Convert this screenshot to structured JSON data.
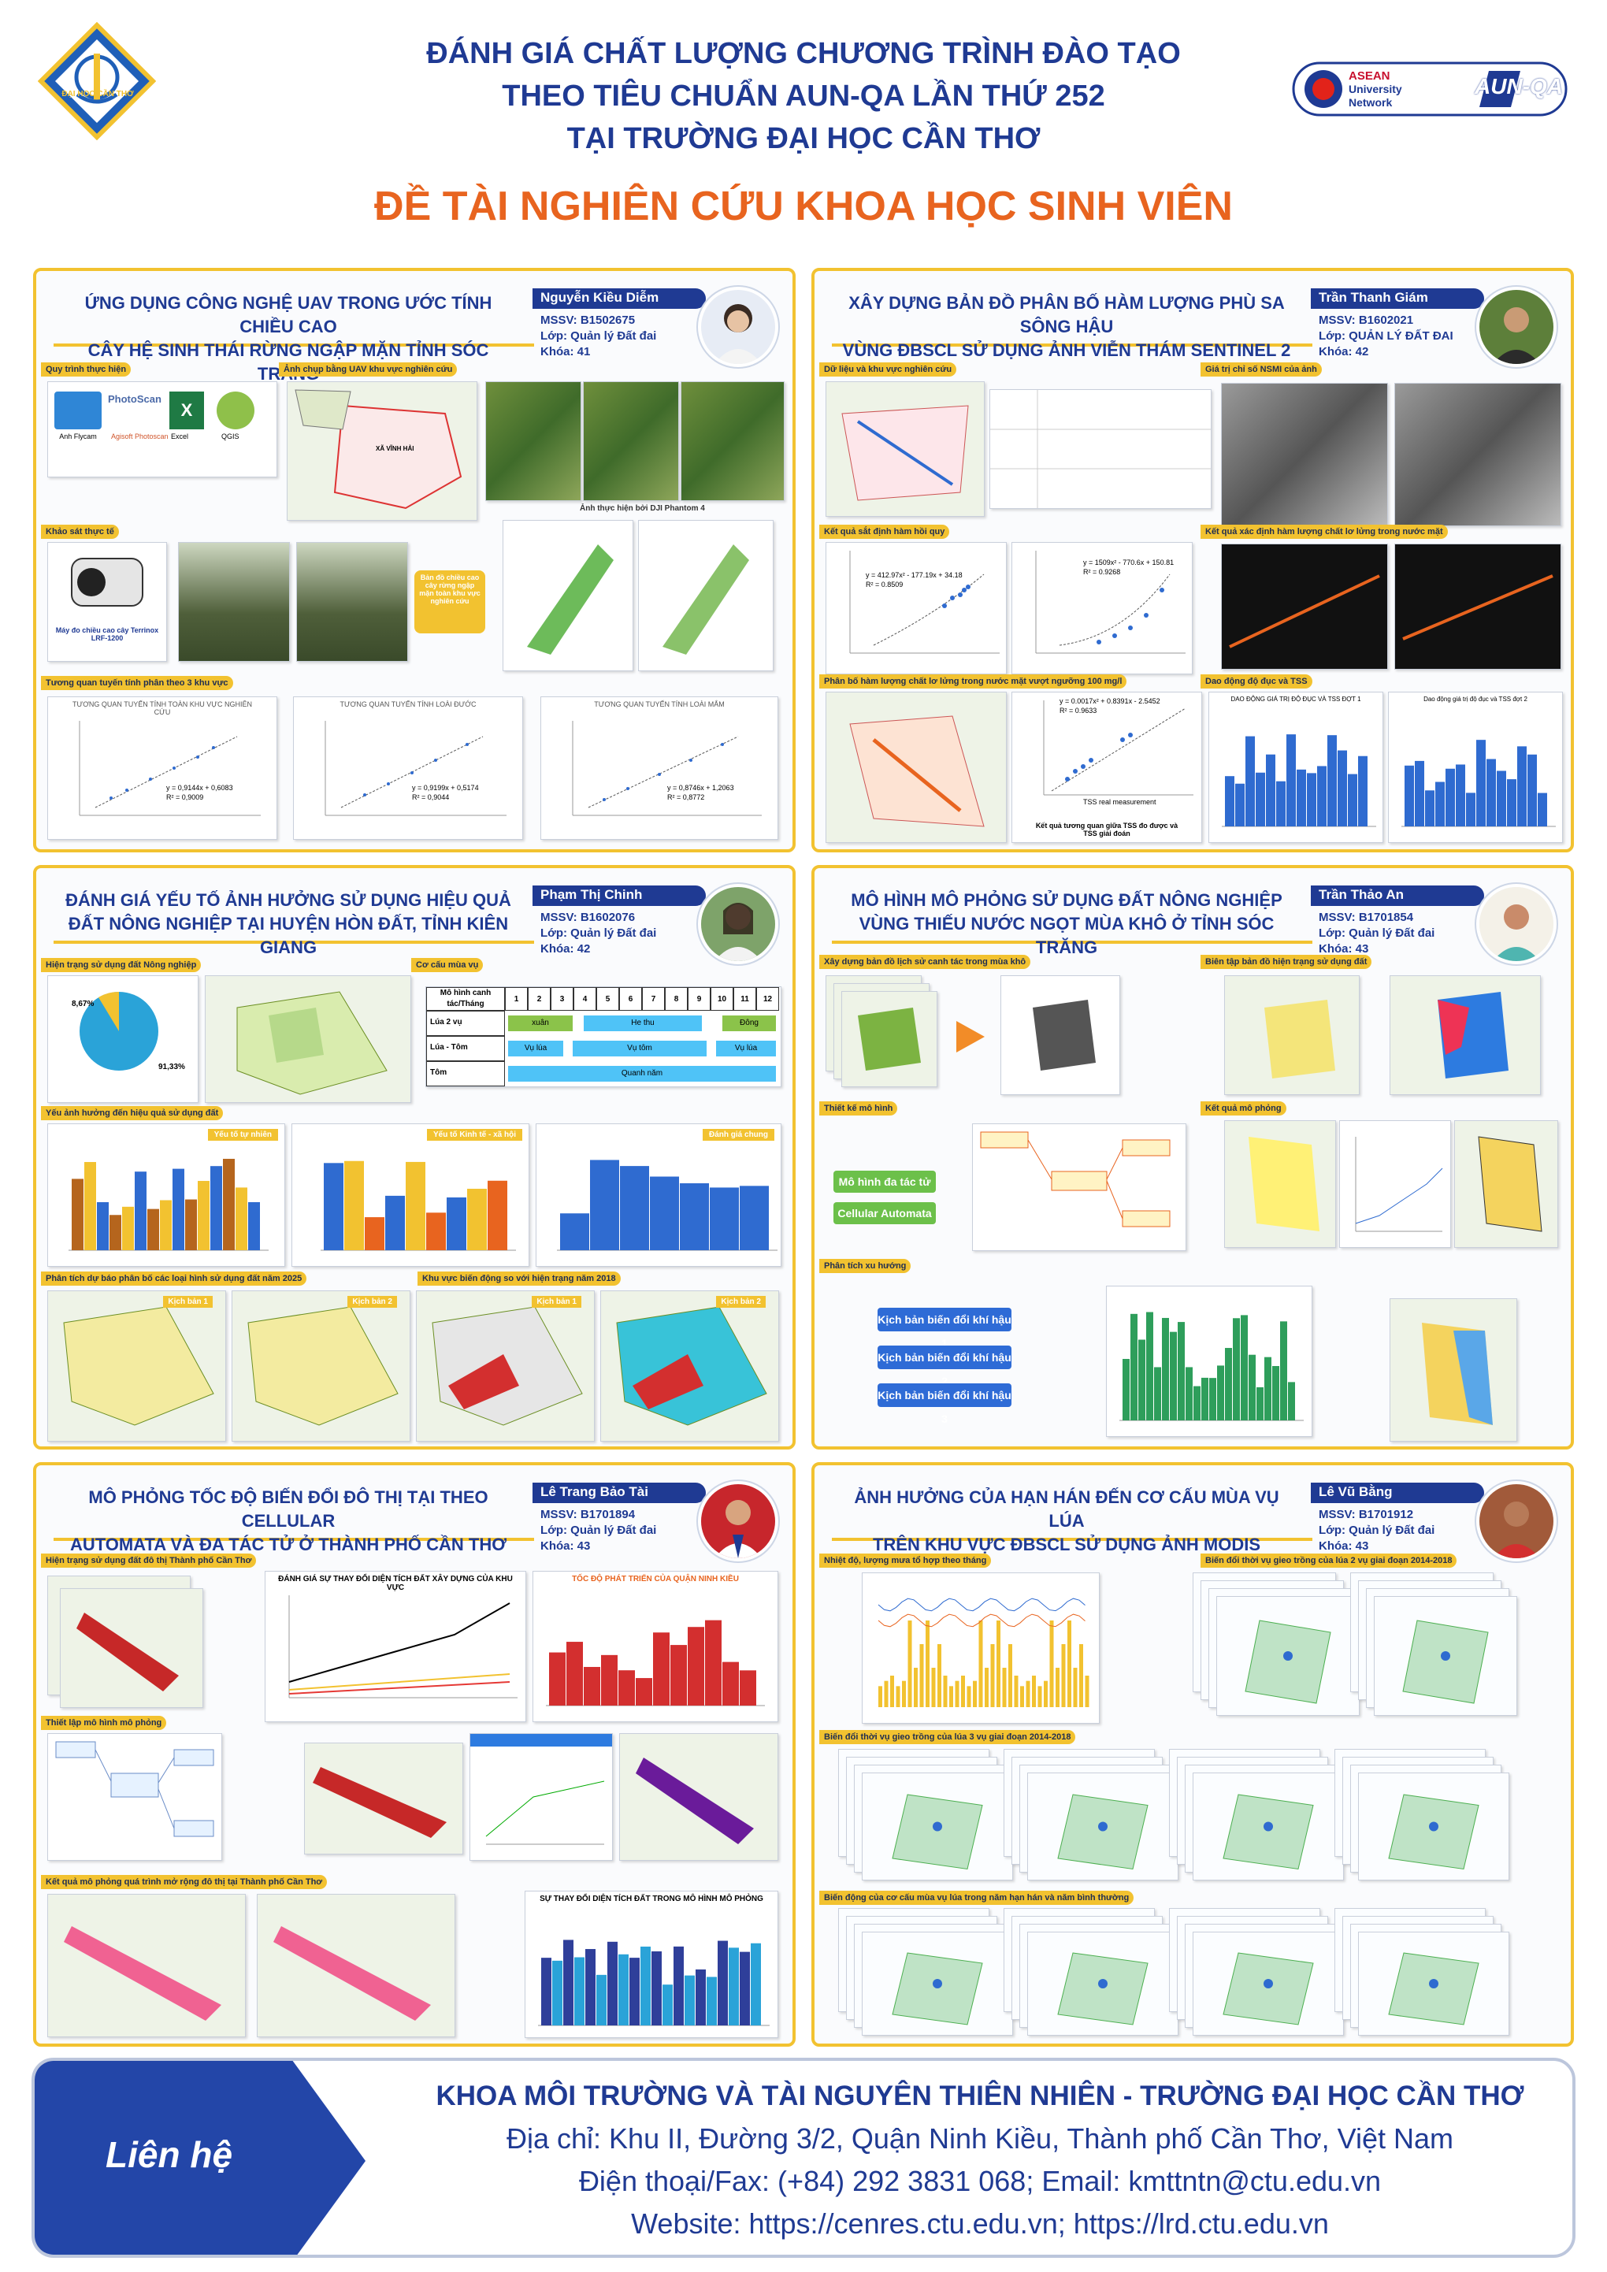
{
  "header": {
    "line1": "ĐÁNH GIÁ CHẤT LƯỢNG CHƯƠNG TRÌNH ĐÀO TẠO",
    "line2": "THEO TIÊU CHUẨN AUN-QA LẦN THỨ 252",
    "line3": "TẠI TRƯỜNG ĐẠI HỌC CẦN THƠ",
    "main_title": "ĐỀ TÀI NGHIÊN CỨU KHOA HỌC SINH VIÊN",
    "ctu_logo_text": "ĐẠI HỌC CẦN THƠ",
    "asean_logo": [
      "ASEAN",
      "University",
      "Network"
    ],
    "aunqa_logo": "AUN-QA"
  },
  "colors": {
    "accent": "#f2c230",
    "primary": "#1f3a93",
    "orange": "#e8641f"
  },
  "panels": [
    {
      "title": [
        "ỨNG DỤNG CÔNG NGHỆ UAV TRONG ƯỚC TÍNH CHIỀU CAO",
        "CÂY HỆ SINH THÁI RỪNG NGẬP MẶN TỈNH SÓC TRĂNG"
      ],
      "author": "Nguyễn Kiều Diễm",
      "mssv": "MSSV: B1502675",
      "lop": "Lớp: Quản lý Đất đai",
      "khoa": "Khóa: 41",
      "sections": [
        "Quy trình thực hiện",
        "Ảnh chụp bằng UAV khu vực nghiên cứu",
        "Khảo sát thực tế",
        "Tương quan tuyến tính phân theo 3 khu vực"
      ],
      "captions": [
        "Ảnh thực hiện bởi DJI Phantom 4",
        "Máy đo chiều cao cây Terrinox LRF-1200",
        "Bản đồ chiều cao cây rừng ngập mặn toàn khu vực nghiên cứu"
      ],
      "workflow": [
        "Anh Flycam",
        "PhotoScan",
        "Agisoft Photoscan",
        "Excel",
        "QGIS"
      ],
      "chart_titles": [
        "TƯƠNG QUAN TUYẾN TÍNH TOÀN KHU VỰC NGHIÊN CỨU",
        "TƯƠNG QUAN TUYẾN TÍNH LOÀI ĐƯỚC",
        "TƯƠNG QUAN TUYẾN TÍNH LOÀI MẮM"
      ],
      "equations": [
        "y = 0,9144x + 0,6083",
        "y = 0,9199x + 0,5174",
        "y = 0,8746x + 1,2063"
      ],
      "r2": [
        "R² = 0,9009",
        "R² = 0,9044",
        "R² = 0,8772"
      ],
      "map_label": "XÃ VĨNH HẢI"
    },
    {
      "title": [
        "XÂY DỰNG BẢN ĐỒ PHÂN BỐ HÀM LƯỢNG PHÙ SA SÔNG HẬU",
        "VÙNG ĐBSCL SỬ DỤNG ẢNH VIỄN THÁM SENTINEL 2"
      ],
      "author": "Trần Thanh Giám",
      "mssv": "MSSV: B1602021",
      "lop": "Lớp: QUẢN LÝ ĐẤT ĐAI",
      "khoa": "Khóa: 42",
      "sections": [
        "Dữ liệu và khu vực nghiên cứu",
        "Giá trị chỉ số NSMI của ảnh",
        "Kết quả sắt định hàm hồi quy",
        "Kết quả xác định hàm lượng chất lơ lửng trong nước mặt",
        "Phân bố hàm lượng chất lơ lửng trong nước mặt vượt ngưỡng 100 mg/l",
        "Dao động độ đục và TSS"
      ],
      "equations": [
        "y = 412.97x² - 177.19x + 34.18",
        "y = 1509x² - 770.6x + 150.81",
        "y = 0.0017x² + 0.8391x - 2.5452"
      ],
      "r2": [
        "R² = 0.8509",
        "R² = 0.9268",
        "R² = 0.9633"
      ],
      "caption": "Kết quả tương quan giữa TSS đo được và TSS giải đoán",
      "axis": [
        "TSS real measurement",
        "TSS image"
      ],
      "chart_titles": [
        "DAO ĐỘNG GIÁ TRỊ ĐỘ ĐỤC VÀ TSS ĐỢT 1",
        "Dao động giá trị độ đục và TSS đợt 2"
      ]
    },
    {
      "title": [
        "ĐÁNH GIÁ YẾU TỐ ẢNH HƯỞNG SỬ DỤNG HIỆU QUẢ",
        "ĐẤT NÔNG NGHIỆP TẠI HUYỆN HÒN ĐẤT, TỈNH KIÊN GIANG"
      ],
      "author": "Phạm Thị Chinh",
      "mssv": "MSSV: B1602076",
      "lop": "Lớp: Quản lý Đất đai",
      "khoa": "Khóa: 42",
      "sections": [
        "Hiện trạng sử dụng đất Nông nghiệp",
        "Cơ cấu mùa vụ",
        "Yếu ảnh hưởng đến hiệu quả sử dụng đất",
        "Phân tích dự báo phân bố các loại hình sử dụng đất năm 2025",
        "Khu vực biến động so với hiện trạng năm 2018"
      ],
      "pie_labels": [
        "8,67%",
        "91,33%"
      ],
      "season_table": {
        "header": "Mô hình canh tác/Tháng",
        "months": [
          "1",
          "2",
          "3",
          "4",
          "5",
          "6",
          "7",
          "8",
          "9",
          "10",
          "11",
          "12"
        ],
        "rows": [
          "Lúa 2 vụ",
          "Lúa - Tôm",
          "Tôm"
        ],
        "labels": [
          "xuân",
          "He thu",
          "Đông",
          "Vụ lúa",
          "Vụ tôm",
          "Vụ lúa",
          "Quanh năm"
        ]
      },
      "factor_titles": [
        "Yếu tố tự nhiên",
        "Yếu tố Kinh tế - xã hội",
        "Đánh giá chung"
      ],
      "scenario_labels": [
        "Kịch bản 1",
        "Kịch bản 2",
        "Kịch bản 1",
        "Kịch bản 2"
      ]
    },
    {
      "title": [
        "MÔ HÌNH MÔ PHỎNG SỬ DỤNG ĐẤT NÔNG NGHIỆP",
        "VÙNG THIẾU NƯỚC NGỌT MÙA KHÔ Ở TỈNH SÓC TRĂNG"
      ],
      "author": "Trần Thảo An",
      "mssv": "MSSV: B1701854",
      "lop": "Lớp: Quản lý Đất đai",
      "khoa": "Khóa: 43",
      "sections": [
        "Xây dựng bản đồ lịch sử canh tác trong mùa khô",
        "Biên tập bản đồ hiện trạng sử dụng đất",
        "Thiết kế mô hình",
        "Kết quả mô phỏng",
        "Phân tích xu hướng"
      ],
      "buttons": [
        "Mô hình đa tác tử",
        "Cellular Automata"
      ],
      "scenarios": [
        "Kịch bản biến đổi khí hậu 1",
        "Kịch bản biến đổi khí hậu 2",
        "Kịch bản biến đổi khí hậu 3"
      ]
    },
    {
      "title": [
        "MÔ PHỎNG TỐC ĐỘ BIẾN ĐỔI ĐÔ THỊ TẠI  THEO CELLULAR",
        "AUTOMATA VÀ ĐA TÁC TỬ Ở THÀNH PHỐ CẦN THƠ"
      ],
      "author": "Lê Trang Bảo Tài",
      "mssv": "MSSV: B1701894",
      "lop": "Lớp: Quản lý Đất đai",
      "khoa": "Khóa: 43",
      "sections": [
        "Hiện trạng sử dụng đất đô thị Thành phố Cần Thơ",
        "Thiết lập mô hình mô phỏng",
        "Kết quả mô phỏng quá trình mở rộng đô thị tại Thành phố Cần Thơ"
      ],
      "chart_titles": [
        "ĐÁNH GIÁ SỰ THAY ĐỔI DIỆN TÍCH ĐẤT XÂY DỰNG CỦA KHU VỰC",
        "TỐC ĐỘ PHÁT TRIỂN CỦA QUẬN NINH KIỀU",
        "SỰ THAY ĐỔI DIỆN TÍCH ĐẤT TRONG MÔ HÌNH MÔ PHỎNG"
      ]
    },
    {
      "title": [
        "ẢNH HƯỞNG CỦA HẠN HÁN ĐẾN CƠ CẤU MÙA VỤ LÚA",
        "TRÊN KHU VỰC ĐBSCL SỬ DỤNG ẢNH MODIS"
      ],
      "author": "Lê Vũ Bằng",
      "mssv": "MSSV: B1701912",
      "lop": "Lớp: Quản lý Đất đai",
      "khoa": "Khóa: 43",
      "sections": [
        "Nhiệt độ, lượng mưa tổ hợp theo tháng",
        "Biến đổi thời vụ gieo trồng của lúa 2 vụ giai đoạn 2014-2018",
        "Biến đổi thời vụ gieo trồng của lúa 3 vụ giai đoạn 2014-2018",
        "Biến động của cơ cấu mùa vụ lúa trong năm hạn hán và năm bình thường"
      ]
    }
  ],
  "footer": {
    "contact": "Liên hệ",
    "line1": "KHOA MÔI TRƯỜNG VÀ TÀI NGUYÊN THIÊN NHIÊN - TRƯỜNG ĐẠI HỌC CẦN THƠ",
    "line2": "Địa chỉ: Khu II, Đường 3/2, Quận Ninh Kiều, Thành phố Cần Thơ, Việt Nam",
    "line3": "Điện thoại/Fax: (+84) 292 3831 068; Email: kmttntn@ctu.edu.vn",
    "line4": "Website: https://cenres.ctu.edu.vn; https://lrd.ctu.edu.vn"
  }
}
